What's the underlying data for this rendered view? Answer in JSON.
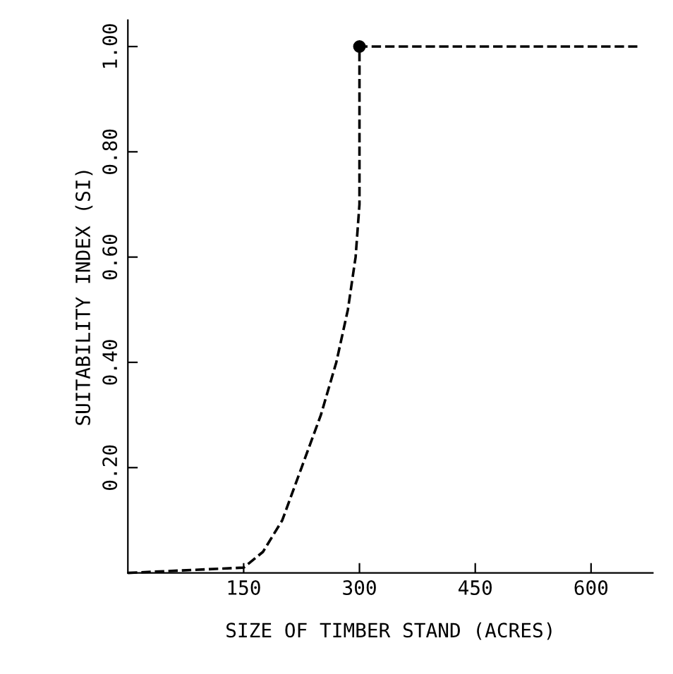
{
  "chart_data": {
    "type": "line",
    "xlabel": "SIZE OF TIMBER STAND (ACRES)",
    "ylabel": "SUITABILITY INDEX (SI)",
    "series": [
      {
        "color": "#000000",
        "line_style": "dashed",
        "marker": "none",
        "x": [
          0,
          150,
          175,
          200,
          225,
          250,
          270,
          285,
          295,
          300,
          300,
          660
        ],
        "values": [
          0,
          0.01,
          0.04,
          0.1,
          0.2,
          0.3,
          0.4,
          0.5,
          0.6,
          0.7,
          1.0,
          1.0
        ]
      },
      {
        "type": "scatter",
        "color": "#000000",
        "marker": "circle",
        "x": [
          300
        ],
        "values": [
          1.0
        ]
      }
    ],
    "xlim": [
      0,
      680
    ],
    "ylim": [
      0,
      1.05
    ],
    "xticks": [
      150,
      300,
      450,
      600
    ],
    "yticks": [
      {
        "value": 0.2,
        "label": "0.20"
      },
      {
        "value": 0.4,
        "label": "0.40"
      },
      {
        "value": 0.6,
        "label": "0.60"
      },
      {
        "value": 0.8,
        "label": "0.80"
      },
      {
        "value": 1.0,
        "label": "1.00"
      }
    ],
    "grid": false,
    "legend": false
  }
}
